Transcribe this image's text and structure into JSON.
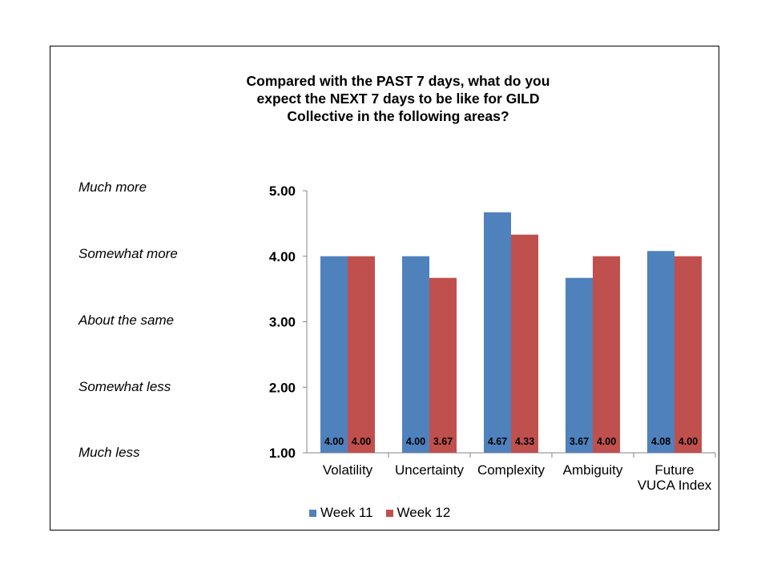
{
  "chart_data": {
    "type": "bar",
    "title_lines": [
      "Compared with the PAST 7 days, what do you",
      "expect the NEXT 7 days to be like for GILD",
      "Collective in the following areas?"
    ],
    "categories": [
      [
        "Volatility"
      ],
      [
        "Uncertainty"
      ],
      [
        "Complexity"
      ],
      [
        "Ambiguity"
      ],
      [
        "Future",
        "VUCA Index"
      ]
    ],
    "series": [
      {
        "name": "Week 11",
        "color": "#4F81BD",
        "values": [
          4.0,
          4.0,
          4.67,
          3.67,
          4.08
        ],
        "labels": [
          "4.00",
          "4.00",
          "4.67",
          "3.67",
          "4.08"
        ]
      },
      {
        "name": "Week 12",
        "color": "#C0504D",
        "values": [
          4.0,
          3.67,
          4.33,
          4.0,
          4.0
        ],
        "labels": [
          "4.00",
          "3.67",
          "4.33",
          "4.00",
          "4.00"
        ]
      }
    ],
    "y_ticks": [
      "1.00",
      "2.00",
      "3.00",
      "4.00",
      "5.00"
    ],
    "ylim": [
      1,
      5
    ],
    "scale_labels": [
      "Much less",
      "Somewhat less",
      "About the same",
      "Somewhat more",
      "Much more"
    ],
    "legend_position": "bottom",
    "grid": false
  }
}
